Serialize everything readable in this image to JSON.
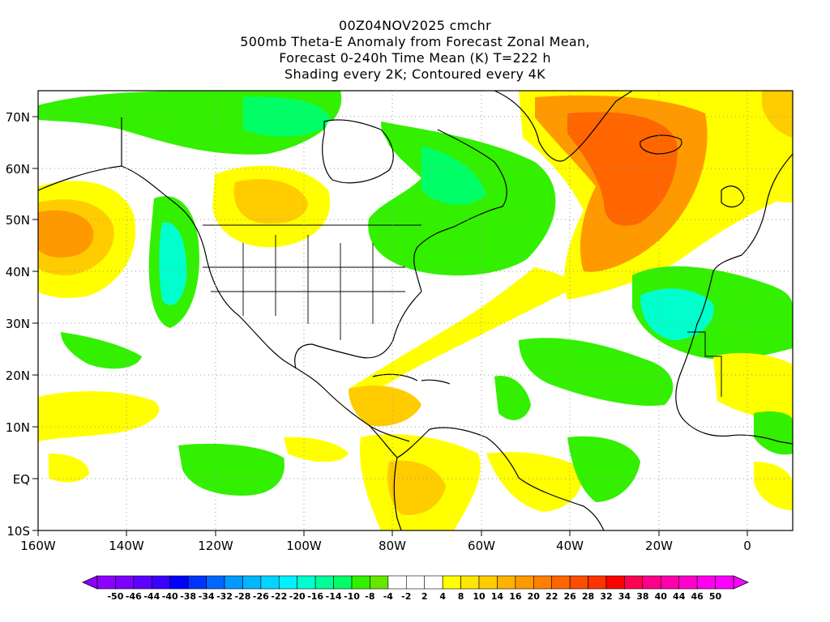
{
  "title": {
    "line1": "00Z04NOV2025 cmchr",
    "line2": "500mb Theta-E Anomaly from Forecast Zonal Mean,",
    "line3": "Forecast 0-240h Time Mean (K) T=222 h",
    "line4": "Shading every 2K; Contoured every 4K"
  },
  "map": {
    "lat_ticks": [
      "70N",
      "60N",
      "50N",
      "40N",
      "30N",
      "20N",
      "10N",
      "EQ",
      "10S"
    ],
    "lon_ticks": [
      "160W",
      "140W",
      "120W",
      "100W",
      "80W",
      "60W",
      "40W",
      "20W",
      "0"
    ],
    "lat_range": [
      -10,
      75
    ],
    "lon_range": [
      -160,
      10
    ],
    "gridlines": "dotted",
    "colors": {
      "land_outline": "#000000",
      "grid": "#9a9a9a"
    }
  },
  "colorbar": {
    "labels": [
      "-50",
      "-46",
      "-44",
      "-40",
      "-38",
      "-34",
      "-32",
      "-28",
      "-26",
      "-22",
      "-20",
      "-16",
      "-14",
      "-10",
      "-8",
      "-4",
      "-2",
      "2",
      "4",
      "8",
      "10",
      "14",
      "16",
      "20",
      "22",
      "26",
      "28",
      "32",
      "34",
      "38",
      "40",
      "44",
      "46",
      "50"
    ],
    "colors": [
      "#8c00ff",
      "#7a00ff",
      "#5c00ff",
      "#3a00ff",
      "#0000ff",
      "#0033ff",
      "#0066ff",
      "#0099ff",
      "#00b6ff",
      "#00d5ff",
      "#00f2ff",
      "#00ffcc",
      "#00ff99",
      "#00ff66",
      "#33f000",
      "#66e600",
      "#ffffff",
      "#ffffff",
      "#ffffff",
      "#ffff00",
      "#ffe600",
      "#ffcc00",
      "#ffb300",
      "#ff9900",
      "#ff8000",
      "#ff6600",
      "#ff4d00",
      "#ff3300",
      "#ff0000",
      "#ff0055",
      "#ff0088",
      "#ff00aa",
      "#ff00cc",
      "#ff00ee",
      "#ff00ff"
    ]
  }
}
